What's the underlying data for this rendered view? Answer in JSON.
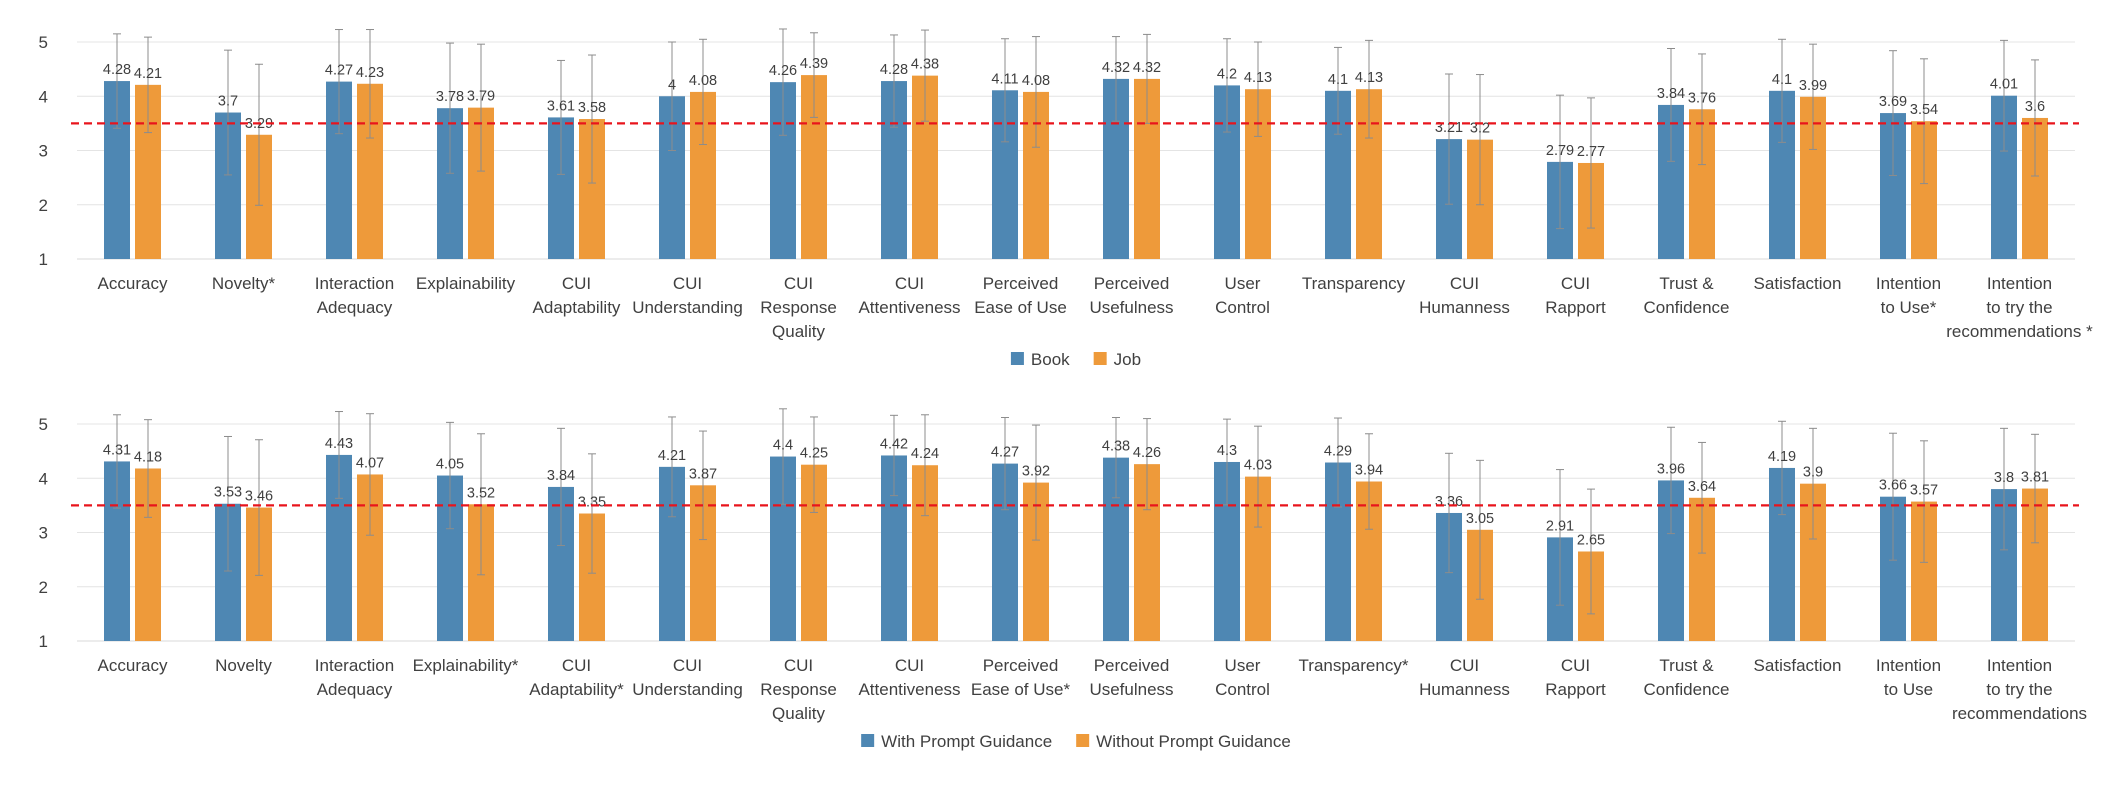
{
  "chart_data": [
    {
      "type": "bar",
      "title": "",
      "xlabel": "",
      "ylabel": "",
      "ylim": [
        1,
        5
      ],
      "yticks": [
        1,
        2,
        3,
        4,
        5
      ],
      "reference_line": 3.5,
      "legend_position": "bottom-center",
      "categories": [
        "Accuracy",
        "Novelty*",
        "Interaction\nAdequacy",
        "Explainability",
        "CUI\nAdaptability",
        "CUI\nUnderstanding",
        "CUI\nResponse\nQuality",
        "CUI\nAttentiveness",
        "Perceived\nEase of Use",
        "Perceived\nUsefulness",
        "User\nControl",
        "Transparency",
        "CUI\nHumanness",
        "CUI\nRapport",
        "Trust &\nConfidence",
        "Satisfaction",
        "Intention\nto Use*",
        "Intention\nto try the\nrecommendations *"
      ],
      "series": [
        {
          "name": "Book",
          "color": "#4e87b3",
          "values": [
            4.28,
            3.7,
            4.27,
            3.78,
            3.61,
            4,
            4.26,
            4.28,
            4.11,
            4.32,
            4.2,
            4.1,
            3.21,
            2.79,
            3.84,
            4.1,
            3.69,
            4.01
          ],
          "labels": [
            "4.28",
            "3.7",
            "4.27",
            "3.78",
            "3.61",
            "4",
            "4.26",
            "4.28",
            "4.11",
            "4.32",
            "4.2",
            "4.1",
            "3.21",
            "2.79",
            "3.84",
            "4.1",
            "3.69",
            "4.01"
          ],
          "error": [
            0.87,
            1.15,
            0.96,
            1.2,
            1.05,
            1.0,
            0.98,
            0.85,
            0.95,
            0.78,
            0.86,
            0.8,
            1.2,
            1.23,
            1.04,
            0.95,
            1.15,
            1.02
          ]
        },
        {
          "name": "Job",
          "color": "#ee9a3a",
          "values": [
            4.21,
            3.29,
            4.23,
            3.79,
            3.58,
            4.08,
            4.39,
            4.38,
            4.08,
            4.32,
            4.13,
            4.13,
            3.2,
            2.77,
            3.76,
            3.99,
            3.54,
            3.6
          ],
          "labels": [
            "4.21",
            "3.29",
            "4.23",
            "3.79",
            "3.58",
            "4.08",
            "4.39",
            "4.38",
            "4.08",
            "4.32",
            "4.13",
            "4.13",
            "3.2",
            "2.77",
            "3.76",
            "3.99",
            "3.54",
            "3.6"
          ],
          "error": [
            0.88,
            1.3,
            1.0,
            1.17,
            1.18,
            0.97,
            0.78,
            0.84,
            1.02,
            0.82,
            0.87,
            0.9,
            1.2,
            1.2,
            1.02,
            0.97,
            1.15,
            1.07
          ]
        }
      ]
    },
    {
      "type": "bar",
      "title": "",
      "xlabel": "",
      "ylabel": "",
      "ylim": [
        1,
        5
      ],
      "yticks": [
        1,
        2,
        3,
        4,
        5
      ],
      "reference_line": 3.5,
      "legend_position": "bottom-center",
      "categories": [
        "Accuracy",
        "Novelty",
        "Interaction\nAdequacy",
        "Explainability*",
        "CUI\nAdaptability*",
        "CUI\nUnderstanding",
        "CUI\nResponse\nQuality",
        "CUI\nAttentiveness",
        "Perceived\nEase of Use*",
        "Perceived\nUsefulness",
        "User\nControl",
        "Transparency*",
        "CUI\nHumanness",
        "CUI\nRapport",
        "Trust &\nConfidence",
        "Satisfaction",
        "Intention\nto Use",
        "Intention\nto try the\nrecommendations"
      ],
      "series": [
        {
          "name": "With Prompt Guidance",
          "color": "#4e87b3",
          "values": [
            4.31,
            3.53,
            4.43,
            4.05,
            3.84,
            4.21,
            4.4,
            4.42,
            4.27,
            4.38,
            4.3,
            4.29,
            3.36,
            2.91,
            3.96,
            4.19,
            3.66,
            3.8
          ],
          "labels": [
            "4.31",
            "3.53",
            "4.43",
            "4.05",
            "3.84",
            "4.21",
            "4.4",
            "4.42",
            "4.27",
            "4.38",
            "4.3",
            "4.29",
            "3.36",
            "2.91",
            "3.96",
            "4.19",
            "3.66",
            "3.8"
          ],
          "error": [
            0.86,
            1.24,
            0.8,
            0.98,
            1.08,
            0.92,
            0.88,
            0.74,
            0.85,
            0.74,
            0.79,
            0.82,
            1.1,
            1.25,
            0.98,
            0.86,
            1.17,
            1.12
          ]
        },
        {
          "name": "Without Prompt Guidance",
          "color": "#ee9a3a",
          "values": [
            4.18,
            3.46,
            4.07,
            3.52,
            3.35,
            3.87,
            4.25,
            4.24,
            3.92,
            4.26,
            4.03,
            3.94,
            3.05,
            2.65,
            3.64,
            3.9,
            3.57,
            3.81
          ],
          "labels": [
            "4.18",
            "3.46",
            "4.07",
            "3.52",
            "3.35",
            "3.87",
            "4.25",
            "4.24",
            "3.92",
            "4.26",
            "4.03",
            "3.94",
            "3.05",
            "2.65",
            "3.64",
            "3.9",
            "3.57",
            "3.81"
          ],
          "error": [
            0.9,
            1.25,
            1.12,
            1.3,
            1.1,
            1.0,
            0.88,
            0.93,
            1.06,
            0.84,
            0.93,
            0.88,
            1.28,
            1.15,
            1.02,
            1.02,
            1.12,
            1.0
          ]
        }
      ]
    }
  ]
}
